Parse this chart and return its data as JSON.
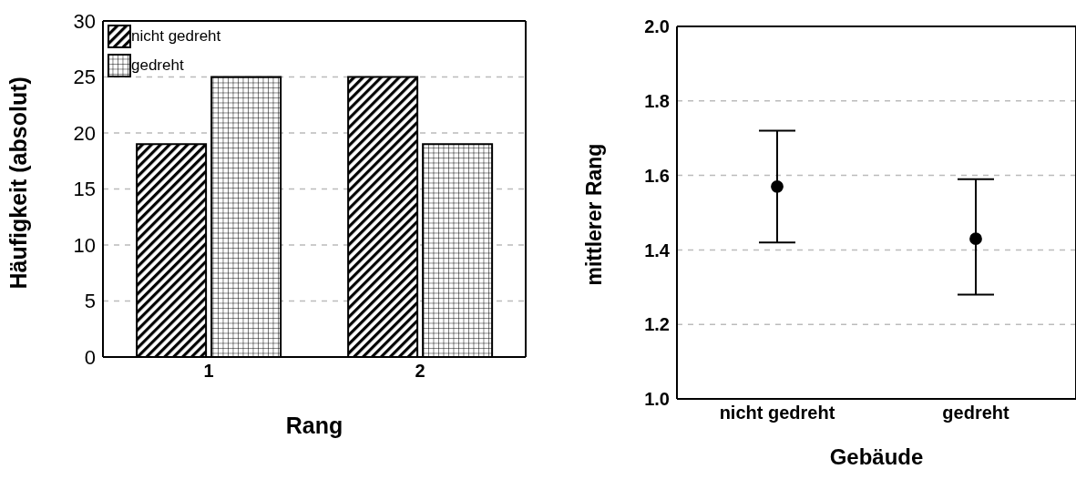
{
  "chart_data": [
    {
      "type": "bar",
      "xlabel": "Rang",
      "ylabel": "Häufigkeit (absolut)",
      "categories": [
        "1",
        "2"
      ],
      "series": [
        {
          "name": "nicht gedreht",
          "color": "#000000",
          "values": [
            19,
            25
          ]
        },
        {
          "name": "gedreht",
          "color": "#000000",
          "values": [
            25,
            19
          ]
        }
      ],
      "ylim": [
        0,
        30
      ],
      "yticks": [
        0,
        5,
        10,
        15,
        20,
        25,
        30
      ],
      "grid": "y",
      "legend": "top left"
    },
    {
      "type": "scatter",
      "xlabel": "Gebäude",
      "ylabel": "mittlerer Rang",
      "categories": [
        "nicht gedreht",
        "gedreht"
      ],
      "values": [
        1.57,
        1.43
      ],
      "errors": [
        [
          1.42,
          1.72
        ],
        [
          1.28,
          1.59
        ]
      ],
      "color": "#000000",
      "marker": "circle",
      "ylim": [
        1,
        2
      ],
      "yticks": [
        {
          "value": 1,
          "label": "1.0"
        },
        1.2,
        1.4,
        1.6,
        1.8,
        {
          "value": 2,
          "label": "2.0"
        }
      ],
      "grid": "y"
    }
  ]
}
